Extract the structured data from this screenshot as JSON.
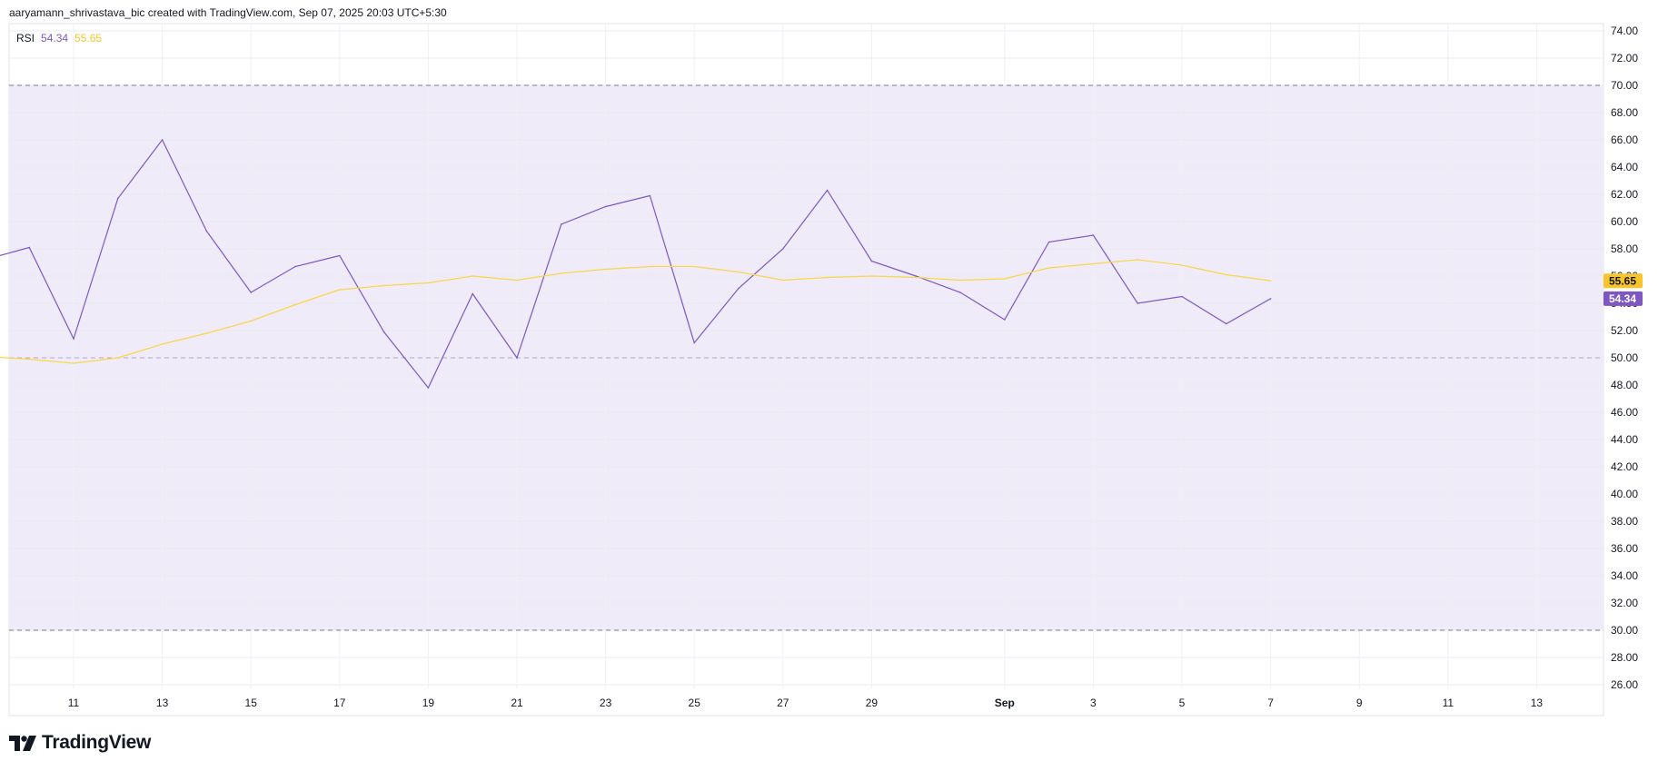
{
  "header": {
    "attribution": "aaryamann_shrivastava_bic created with TradingView.com, Sep 07, 2025 20:03 UTC+5:30"
  },
  "legend": {
    "name": "RSI",
    "rsi_value": "54.34",
    "ma_value": "55.65"
  },
  "brand": {
    "name": "TradingView"
  },
  "colors": {
    "rsi": "#7e57c2",
    "ma": "#f9d64a",
    "band": "#efebf8",
    "rsi_badge": "#7e57c2",
    "ma_badge": "#f7c52b"
  },
  "chart_data": {
    "type": "line",
    "ylim": [
      25,
      75
    ],
    "y_ticks": [
      "74.00",
      "72.00",
      "70.00",
      "68.00",
      "66.00",
      "64.00",
      "62.00",
      "60.00",
      "58.00",
      "56.00",
      "54.00",
      "52.00",
      "50.00",
      "48.00",
      "46.00",
      "44.00",
      "42.00",
      "40.00",
      "38.00",
      "36.00",
      "34.00",
      "32.00",
      "30.00",
      "28.00",
      "26.00"
    ],
    "x_tick_labels": [
      "11",
      "13",
      "15",
      "17",
      "19",
      "21",
      "23",
      "25",
      "27",
      "29",
      "Sep",
      "3",
      "5",
      "7",
      "9",
      "11",
      "13"
    ],
    "x_range": [
      "2025-08-09",
      "2025-09-15"
    ],
    "band": [
      30,
      70
    ],
    "middle_line": 50,
    "x": [
      "2025-08-09",
      "2025-08-10",
      "2025-08-11",
      "2025-08-12",
      "2025-08-13",
      "2025-08-14",
      "2025-08-15",
      "2025-08-16",
      "2025-08-17",
      "2025-08-18",
      "2025-08-19",
      "2025-08-20",
      "2025-08-21",
      "2025-08-22",
      "2025-08-23",
      "2025-08-24",
      "2025-08-25",
      "2025-08-26",
      "2025-08-27",
      "2025-08-28",
      "2025-08-29",
      "2025-08-30",
      "2025-08-31",
      "2025-09-01",
      "2025-09-02",
      "2025-09-03",
      "2025-09-04",
      "2025-09-05",
      "2025-09-06",
      "2025-09-07"
    ],
    "series": [
      {
        "name": "RSI",
        "values": [
          57.2,
          58.1,
          51.4,
          61.7,
          66.0,
          59.3,
          54.8,
          56.7,
          57.5,
          51.9,
          47.8,
          54.7,
          50.0,
          59.8,
          61.1,
          61.9,
          51.1,
          55.1,
          58.0,
          62.3,
          57.1,
          56.0,
          54.8,
          52.8,
          58.5,
          59.0,
          54.0,
          54.5,
          52.5,
          54.34
        ]
      },
      {
        "name": "RSI-based MA",
        "values": [
          50.1,
          49.9,
          49.6,
          50.0,
          51.0,
          51.8,
          52.7,
          53.9,
          55.0,
          55.3,
          55.5,
          56.0,
          55.7,
          56.2,
          56.5,
          56.7,
          56.7,
          56.3,
          55.7,
          55.9,
          56.0,
          55.9,
          55.7,
          55.8,
          56.6,
          56.9,
          57.2,
          56.8,
          56.1,
          55.65
        ]
      }
    ]
  }
}
